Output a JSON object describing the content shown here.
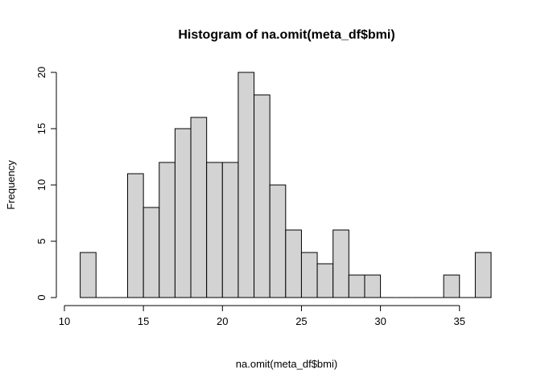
{
  "chart_data": {
    "type": "bar",
    "title": "Histogram of na.omit(meta_df$bmi)",
    "xlabel": "na.omit(meta_df$bmi)",
    "ylabel": "Frequency",
    "xlim": [
      10,
      37
    ],
    "ylim": [
      0,
      20
    ],
    "x_ticks": [
      10,
      15,
      20,
      25,
      30,
      35
    ],
    "y_ticks": [
      0,
      5,
      10,
      15,
      20
    ],
    "bin_width": 1,
    "bins": [
      {
        "start": 11,
        "end": 12,
        "count": 4
      },
      {
        "start": 12,
        "end": 13,
        "count": 0
      },
      {
        "start": 13,
        "end": 14,
        "count": 0
      },
      {
        "start": 14,
        "end": 15,
        "count": 11
      },
      {
        "start": 15,
        "end": 16,
        "count": 8
      },
      {
        "start": 16,
        "end": 17,
        "count": 12
      },
      {
        "start": 17,
        "end": 18,
        "count": 15
      },
      {
        "start": 18,
        "end": 19,
        "count": 16
      },
      {
        "start": 19,
        "end": 20,
        "count": 12
      },
      {
        "start": 20,
        "end": 21,
        "count": 12
      },
      {
        "start": 21,
        "end": 22,
        "count": 20
      },
      {
        "start": 22,
        "end": 23,
        "count": 18
      },
      {
        "start": 23,
        "end": 24,
        "count": 10
      },
      {
        "start": 24,
        "end": 25,
        "count": 6
      },
      {
        "start": 25,
        "end": 26,
        "count": 4
      },
      {
        "start": 26,
        "end": 27,
        "count": 3
      },
      {
        "start": 27,
        "end": 28,
        "count": 6
      },
      {
        "start": 28,
        "end": 29,
        "count": 2
      },
      {
        "start": 29,
        "end": 30,
        "count": 2
      },
      {
        "start": 30,
        "end": 31,
        "count": 0
      },
      {
        "start": 31,
        "end": 32,
        "count": 0
      },
      {
        "start": 32,
        "end": 33,
        "count": 0
      },
      {
        "start": 33,
        "end": 34,
        "count": 0
      },
      {
        "start": 34,
        "end": 35,
        "count": 2
      },
      {
        "start": 35,
        "end": 36,
        "count": 0
      },
      {
        "start": 36,
        "end": 37,
        "count": 4
      }
    ],
    "bar_color": "#d3d3d3",
    "border_color": "#000000",
    "grid": false
  }
}
